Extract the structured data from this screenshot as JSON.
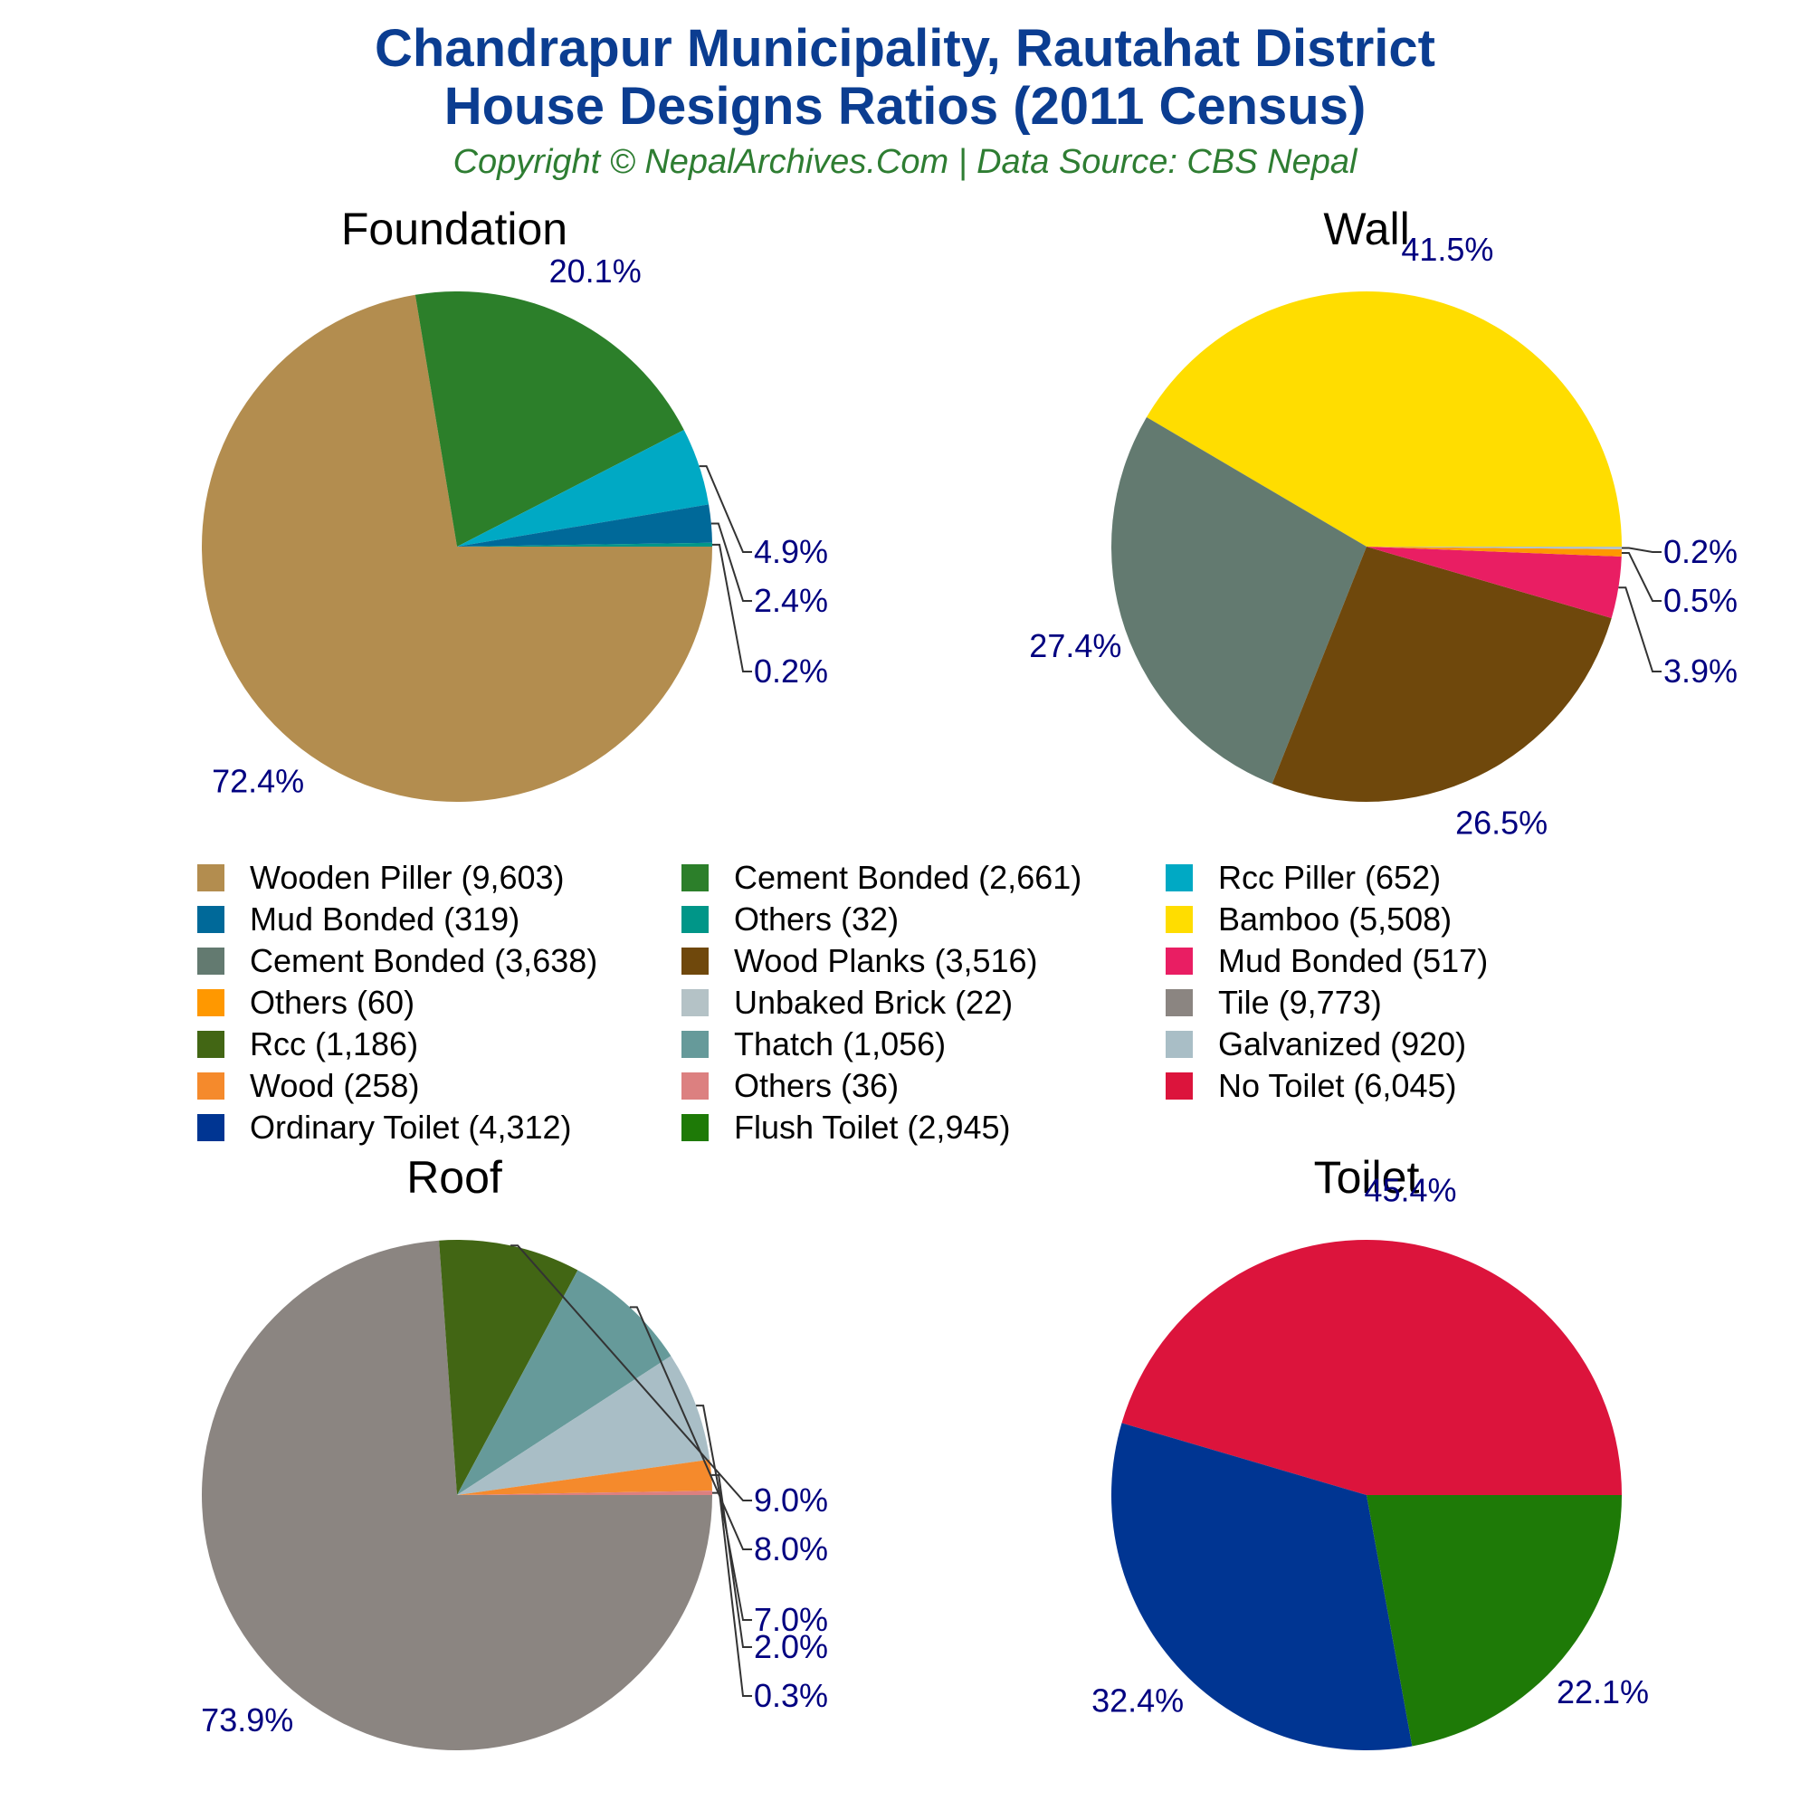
{
  "header": {
    "title_line1": "Chandrapur Municipality, Rautahat District",
    "title_line2": "House Designs Ratios (2011 Census)",
    "subtitle": "Copyright © NepalArchives.Com | Data Source: CBS Nepal"
  },
  "chart_data": [
    {
      "type": "pie",
      "title": "Foundation",
      "slices": [
        {
          "label": "Wooden Piller",
          "value": 9603,
          "pct": "72.4%",
          "color": "#b38d4f"
        },
        {
          "label": "Cement Bonded",
          "value": 2661,
          "pct": "20.1%",
          "color": "#2c7f2a"
        },
        {
          "label": "Rcc Piller",
          "value": 652,
          "pct": "4.9%",
          "color": "#00a9c4"
        },
        {
          "label": "Mud Bonded",
          "value": 319,
          "pct": "2.4%",
          "color": "#006999"
        },
        {
          "label": "Others",
          "value": 32,
          "pct": "0.2%",
          "color": "#009688"
        }
      ]
    },
    {
      "type": "pie",
      "title": "Wall",
      "slices": [
        {
          "label": "Bamboo",
          "value": 5508,
          "pct": "41.5%",
          "color": "#ffdd00"
        },
        {
          "label": "Cement Bonded",
          "value": 3638,
          "pct": "27.4%",
          "color": "#637a70"
        },
        {
          "label": "Wood Planks",
          "value": 3516,
          "pct": "26.5%",
          "color": "#6f480c"
        },
        {
          "label": "Mud Bonded",
          "value": 517,
          "pct": "3.9%",
          "color": "#e91e63"
        },
        {
          "label": "Others",
          "value": 60,
          "pct": "0.5%",
          "color": "#ff9800"
        },
        {
          "label": "Unbaked Brick",
          "value": 22,
          "pct": "0.2%",
          "color": "#b4c2c6"
        }
      ]
    },
    {
      "type": "pie",
      "title": "Roof",
      "slices": [
        {
          "label": "Tile",
          "value": 9773,
          "pct": "73.9%",
          "color": "#8b8581"
        },
        {
          "label": "Rcc",
          "value": 1186,
          "pct": "9.0%",
          "color": "#426614"
        },
        {
          "label": "Thatch",
          "value": 1056,
          "pct": "8.0%",
          "color": "#669a9a"
        },
        {
          "label": "Galvanized",
          "value": 920,
          "pct": "7.0%",
          "color": "#a9bec6"
        },
        {
          "label": "Wood",
          "value": 258,
          "pct": "2.0%",
          "color": "#f58a2c"
        },
        {
          "label": "Others",
          "value": 36,
          "pct": "0.3%",
          "color": "#dc8080"
        }
      ]
    },
    {
      "type": "pie",
      "title": "Toilet",
      "slices": [
        {
          "label": "No Toilet",
          "value": 6045,
          "pct": "45.4%",
          "color": "#dc143c"
        },
        {
          "label": "Ordinary Toilet",
          "value": 4312,
          "pct": "32.4%",
          "color": "#003592"
        },
        {
          "label": "Flush Toilet",
          "value": 2945,
          "pct": "22.1%",
          "color": "#1e7a07"
        }
      ]
    }
  ],
  "legend": [
    {
      "text": "Wooden Piller (9,603)",
      "color": "#b38d4f"
    },
    {
      "text": "Cement Bonded (2,661)",
      "color": "#2c7f2a"
    },
    {
      "text": "Rcc Piller (652)",
      "color": "#00a9c4"
    },
    {
      "text": "Mud Bonded (319)",
      "color": "#006999"
    },
    {
      "text": "Others (32)",
      "color": "#009688"
    },
    {
      "text": "Bamboo (5,508)",
      "color": "#ffdd00"
    },
    {
      "text": "Cement Bonded (3,638)",
      "color": "#637a70"
    },
    {
      "text": "Wood Planks (3,516)",
      "color": "#6f480c"
    },
    {
      "text": "Mud Bonded (517)",
      "color": "#e91e63"
    },
    {
      "text": "Others (60)",
      "color": "#ff9800"
    },
    {
      "text": "Unbaked Brick (22)",
      "color": "#b4c2c6"
    },
    {
      "text": "Tile (9,773)",
      "color": "#8b8581"
    },
    {
      "text": "Rcc (1,186)",
      "color": "#426614"
    },
    {
      "text": "Thatch (1,056)",
      "color": "#669a9a"
    },
    {
      "text": "Galvanized (920)",
      "color": "#a9bec6"
    },
    {
      "text": "Wood (258)",
      "color": "#f58a2c"
    },
    {
      "text": "Others (36)",
      "color": "#dc8080"
    },
    {
      "text": "No Toilet (6,045)",
      "color": "#dc143c"
    },
    {
      "text": "Ordinary Toilet (4,312)",
      "color": "#003592"
    },
    {
      "text": "Flush Toilet (2,945)",
      "color": "#1e7a07"
    }
  ]
}
